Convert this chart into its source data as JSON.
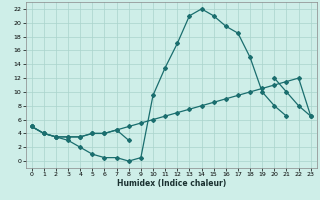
{
  "xlabel": "Humidex (Indice chaleur)",
  "bg_color": "#ceeee8",
  "grid_color": "#aad4cc",
  "line_color": "#1a6e6e",
  "spine_color": "#888888",
  "xlim": [
    -0.5,
    23.5
  ],
  "ylim": [
    -1,
    23
  ],
  "xticks": [
    0,
    1,
    2,
    3,
    4,
    5,
    6,
    7,
    8,
    9,
    10,
    11,
    12,
    13,
    14,
    15,
    16,
    17,
    18,
    19,
    20,
    21,
    22,
    23
  ],
  "yticks": [
    0,
    2,
    4,
    6,
    8,
    10,
    12,
    14,
    16,
    18,
    20,
    22
  ],
  "series": [
    {
      "x": [
        0,
        1,
        2,
        3,
        4,
        5,
        6,
        7,
        8,
        9,
        10,
        11,
        12,
        13,
        14,
        15,
        16,
        17,
        18,
        19,
        20,
        21,
        22,
        23
      ],
      "y": [
        5,
        4,
        3.5,
        3,
        2,
        1,
        0.5,
        0.5,
        0,
        0.5,
        9.5,
        13.5,
        17,
        21,
        22,
        21,
        19.5,
        18.5,
        15,
        10,
        8,
        6.5,
        null,
        null
      ]
    },
    {
      "x": [
        0,
        1,
        2,
        3,
        4,
        5,
        6,
        7,
        8,
        9,
        10,
        11,
        12,
        13,
        14,
        15,
        16,
        17,
        18,
        19,
        20,
        21,
        22,
        23
      ],
      "y": [
        5,
        4,
        3.5,
        3.5,
        3.5,
        4,
        4,
        4.5,
        3,
        null,
        null,
        null,
        null,
        null,
        null,
        null,
        null,
        null,
        null,
        null,
        12,
        10,
        8,
        6.5
      ]
    },
    {
      "x": [
        0,
        1,
        2,
        3,
        4,
        5,
        6,
        7,
        8,
        9,
        10,
        11,
        12,
        13,
        14,
        15,
        16,
        17,
        18,
        19,
        20,
        21,
        22,
        23
      ],
      "y": [
        5,
        4,
        3.5,
        3.5,
        3.5,
        4,
        4,
        4.5,
        5,
        5.5,
        6,
        6.5,
        7,
        7.5,
        8,
        8.5,
        9,
        9.5,
        10,
        10.5,
        11,
        11.5,
        12,
        6.5
      ]
    }
  ]
}
